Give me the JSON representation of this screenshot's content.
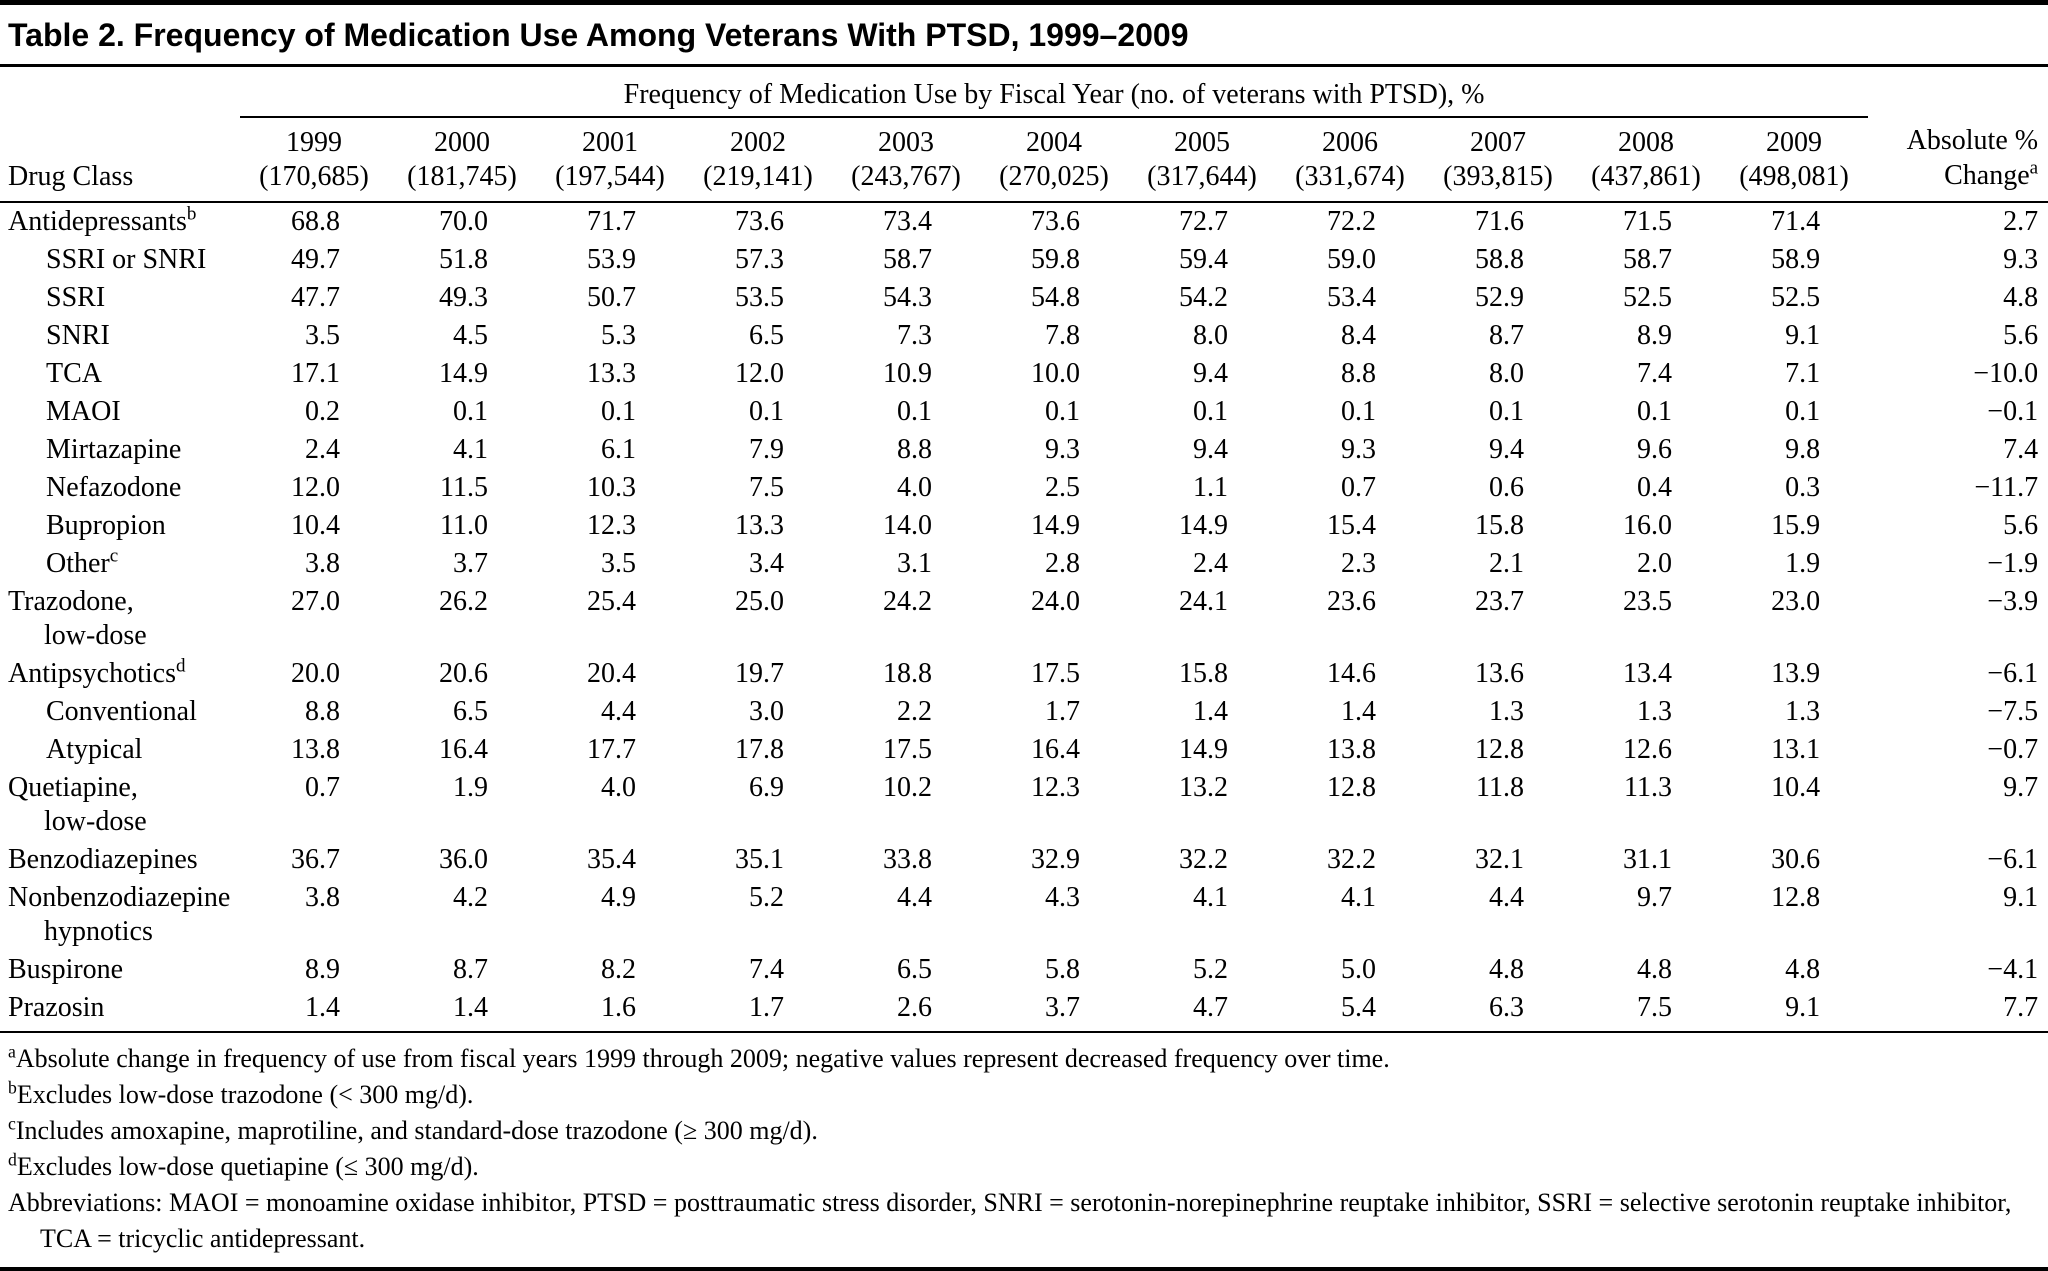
{
  "title": "Table 2. Frequency of Medication Use Among Veterans With PTSD, 1999–2009",
  "table": {
    "span_header": "Frequency of Medication Use by Fiscal Year (no. of veterans with PTSD), %",
    "col0_header": "Drug Class",
    "change_header_line1": "Absolute %",
    "change_header_line2": "Change",
    "change_header_sup": "a",
    "years": [
      "1999",
      "2000",
      "2001",
      "2002",
      "2003",
      "2004",
      "2005",
      "2006",
      "2007",
      "2008",
      "2009"
    ],
    "counts": [
      "(170,685)",
      "(181,745)",
      "(197,544)",
      "(219,141)",
      "(243,767)",
      "(270,025)",
      "(317,644)",
      "(331,674)",
      "(393,815)",
      "(437,861)",
      "(498,081)"
    ],
    "rows": [
      {
        "label": "Antidepressants",
        "sup": "b",
        "indent": 0,
        "values": [
          "68.8",
          "70.0",
          "71.7",
          "73.6",
          "73.4",
          "73.6",
          "72.7",
          "72.2",
          "71.6",
          "71.5",
          "71.4"
        ],
        "change": "2.7"
      },
      {
        "label": "SSRI or SNRI",
        "indent": 1,
        "values": [
          "49.7",
          "51.8",
          "53.9",
          "57.3",
          "58.7",
          "59.8",
          "59.4",
          "59.0",
          "58.8",
          "58.7",
          "58.9"
        ],
        "change": "9.3"
      },
      {
        "label": "SSRI",
        "indent": 1,
        "values": [
          "47.7",
          "49.3",
          "50.7",
          "53.5",
          "54.3",
          "54.8",
          "54.2",
          "53.4",
          "52.9",
          "52.5",
          "52.5"
        ],
        "change": "4.8"
      },
      {
        "label": "SNRI",
        "indent": 1,
        "values": [
          "3.5",
          "4.5",
          "5.3",
          "6.5",
          "7.3",
          "7.8",
          "8.0",
          "8.4",
          "8.7",
          "8.9",
          "9.1"
        ],
        "change": "5.6"
      },
      {
        "label": "TCA",
        "indent": 1,
        "values": [
          "17.1",
          "14.9",
          "13.3",
          "12.0",
          "10.9",
          "10.0",
          "9.4",
          "8.8",
          "8.0",
          "7.4",
          "7.1"
        ],
        "change": "−10.0"
      },
      {
        "label": "MAOI",
        "indent": 1,
        "values": [
          "0.2",
          "0.1",
          "0.1",
          "0.1",
          "0.1",
          "0.1",
          "0.1",
          "0.1",
          "0.1",
          "0.1",
          "0.1"
        ],
        "change": "−0.1"
      },
      {
        "label": "Mirtazapine",
        "indent": 1,
        "values": [
          "2.4",
          "4.1",
          "6.1",
          "7.9",
          "8.8",
          "9.3",
          "9.4",
          "9.3",
          "9.4",
          "9.6",
          "9.8"
        ],
        "change": "7.4"
      },
      {
        "label": "Nefazodone",
        "indent": 1,
        "values": [
          "12.0",
          "11.5",
          "10.3",
          "7.5",
          "4.0",
          "2.5",
          "1.1",
          "0.7",
          "0.6",
          "0.4",
          "0.3"
        ],
        "change": "−11.7"
      },
      {
        "label": "Bupropion",
        "indent": 1,
        "values": [
          "10.4",
          "11.0",
          "12.3",
          "13.3",
          "14.0",
          "14.9",
          "14.9",
          "15.4",
          "15.8",
          "16.0",
          "15.9"
        ],
        "change": "5.6"
      },
      {
        "label": "Other",
        "sup": "c",
        "indent": 1,
        "values": [
          "3.8",
          "3.7",
          "3.5",
          "3.4",
          "3.1",
          "2.8",
          "2.4",
          "2.3",
          "2.1",
          "2.0",
          "1.9"
        ],
        "change": "−1.9"
      },
      {
        "label": "Trazodone,",
        "label2": "low-dose",
        "indent": 0,
        "values": [
          "27.0",
          "26.2",
          "25.4",
          "25.0",
          "24.2",
          "24.0",
          "24.1",
          "23.6",
          "23.7",
          "23.5",
          "23.0"
        ],
        "change": "−3.9"
      },
      {
        "label": "Antipsychotics",
        "sup": "d",
        "indent": 0,
        "values": [
          "20.0",
          "20.6",
          "20.4",
          "19.7",
          "18.8",
          "17.5",
          "15.8",
          "14.6",
          "13.6",
          "13.4",
          "13.9"
        ],
        "change": "−6.1"
      },
      {
        "label": "Conventional",
        "indent": 1,
        "values": [
          "8.8",
          "6.5",
          "4.4",
          "3.0",
          "2.2",
          "1.7",
          "1.4",
          "1.4",
          "1.3",
          "1.3",
          "1.3"
        ],
        "change": "−7.5"
      },
      {
        "label": "Atypical",
        "indent": 1,
        "values": [
          "13.8",
          "16.4",
          "17.7",
          "17.8",
          "17.5",
          "16.4",
          "14.9",
          "13.8",
          "12.8",
          "12.6",
          "13.1"
        ],
        "change": "−0.7"
      },
      {
        "label": "Quetiapine,",
        "label2": "low-dose",
        "indent": 0,
        "values": [
          "0.7",
          "1.9",
          "4.0",
          "6.9",
          "10.2",
          "12.3",
          "13.2",
          "12.8",
          "11.8",
          "11.3",
          "10.4"
        ],
        "change": "9.7"
      },
      {
        "label": "Benzodiazepines",
        "indent": 0,
        "values": [
          "36.7",
          "36.0",
          "35.4",
          "35.1",
          "33.8",
          "32.9",
          "32.2",
          "32.2",
          "32.1",
          "31.1",
          "30.6"
        ],
        "change": "−6.1"
      },
      {
        "label": "Nonbenzodiazepine",
        "label2": "hypnotics",
        "indent": 0,
        "values": [
          "3.8",
          "4.2",
          "4.9",
          "5.2",
          "4.4",
          "4.3",
          "4.1",
          "4.1",
          "4.4",
          "9.7",
          "12.8"
        ],
        "change": "9.1"
      },
      {
        "label": "Buspirone",
        "indent": 0,
        "values": [
          "8.9",
          "8.7",
          "8.2",
          "7.4",
          "6.5",
          "5.8",
          "5.2",
          "5.0",
          "4.8",
          "4.8",
          "4.8"
        ],
        "change": "−4.1"
      },
      {
        "label": "Prazosin",
        "indent": 0,
        "values": [
          "1.4",
          "1.4",
          "1.6",
          "1.7",
          "2.6",
          "3.7",
          "4.7",
          "5.4",
          "6.3",
          "7.5",
          "9.1"
        ],
        "change": "7.7"
      }
    ]
  },
  "footnotes": [
    {
      "sup": "a",
      "text": "Absolute change in frequency of use from fiscal years 1999 through 2009; negative values represent decreased frequency over time."
    },
    {
      "sup": "b",
      "text": "Excludes low-dose trazodone (< 300 mg/d)."
    },
    {
      "sup": "c",
      "text": "Includes amoxapine, maprotiline, and standard-dose trazodone (≥ 300 mg/d)."
    },
    {
      "sup": "d",
      "text": "Excludes low-dose quetiapine (≤ 300 mg/d)."
    },
    {
      "sup": "",
      "text": "Abbreviations: MAOI = monoamine oxidase inhibitor, PTSD = posttraumatic stress disorder, SNRI = serotonin-norepinephrine reuptake inhibitor, SSRI = selective serotonin reuptake inhibitor, TCA = tricyclic antidepressant."
    }
  ]
}
